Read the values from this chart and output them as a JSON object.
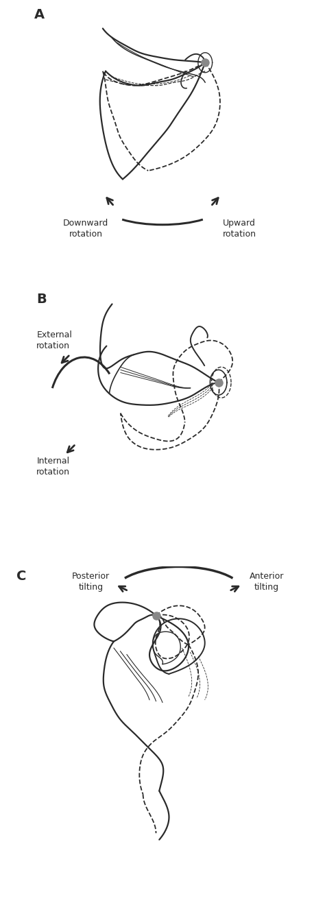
{
  "bg_color": "#ffffff",
  "line_color": "#2a2a2a",
  "dot_color": "#888888",
  "label_A": "A",
  "label_B": "B",
  "label_C": "C",
  "text_downward": "Downward\nrotation",
  "text_upward": "Upward\nrotation",
  "text_external": "External\nrotation",
  "text_internal": "Internal\nrotation",
  "text_posterior": "Posterior\ntilting",
  "text_anterior": "Anterior\ntilting",
  "fontsize_label": 14,
  "fontsize_text": 9,
  "fig_width": 4.74,
  "fig_height": 13.17
}
